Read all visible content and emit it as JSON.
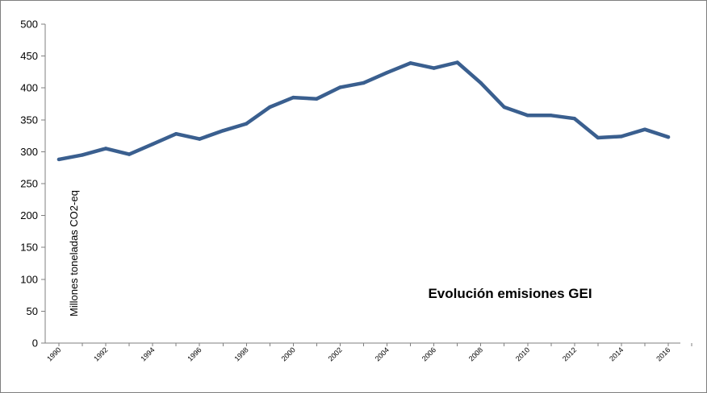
{
  "chart_data": {
    "type": "line",
    "title": "Evolución emisiones GEI",
    "ylabel": "Millones toneladas CO2-eq",
    "xlabel": "",
    "ylim": [
      0,
      500
    ],
    "yticks": [
      0,
      50,
      100,
      150,
      200,
      250,
      300,
      350,
      400,
      450,
      500
    ],
    "xlim": [
      1990,
      2016
    ],
    "xticks": [
      1990,
      1992,
      1994,
      1996,
      1998,
      2000,
      2002,
      2004,
      2006,
      2008,
      2010,
      2012,
      2014,
      2016
    ],
    "grid": false,
    "legend": "none",
    "series_color": "#3a5f8f",
    "series": [
      {
        "x": [
          1990,
          1991,
          1992,
          1993,
          1994,
          1995,
          1996,
          1997,
          1998,
          1999,
          2000,
          2001,
          2002,
          2003,
          2004,
          2005,
          2006,
          2007,
          2008,
          2009,
          2010,
          2011,
          2012,
          2013,
          2014,
          2015,
          2016
        ],
        "values": [
          288,
          295,
          305,
          296,
          312,
          328,
          320,
          333,
          344,
          370,
          385,
          383,
          401,
          408,
          424,
          439,
          431,
          440,
          408,
          370,
          357,
          357,
          352,
          322,
          324,
          335,
          323
        ]
      }
    ]
  }
}
